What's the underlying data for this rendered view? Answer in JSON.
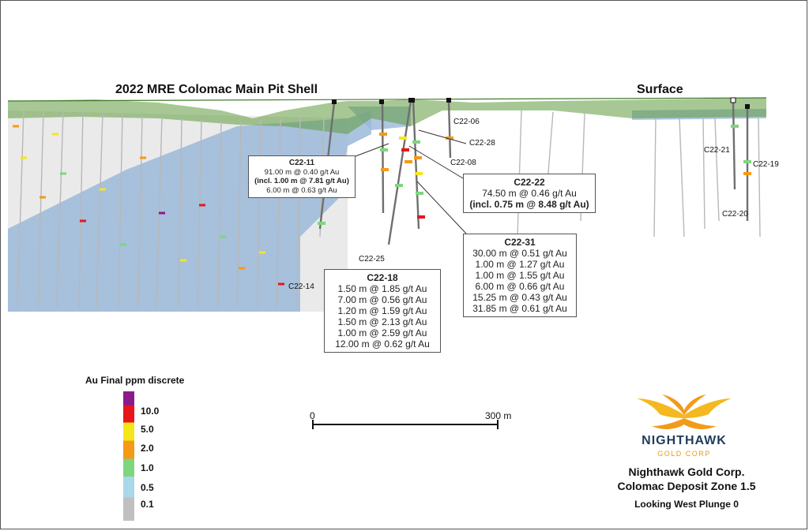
{
  "titles": {
    "pit_shell": "2022 MRE Colomac Main Pit Shell",
    "surface": "Surface"
  },
  "holes": {
    "c22_06": "C22-06",
    "c22_28": "C22-28",
    "c22_08": "C22-08",
    "c22_21": "C22-21",
    "c22_19": "C22-19",
    "c22_20": "C22-20",
    "c22_25": "C22-25",
    "c22_14": "C22-14"
  },
  "intercepts": {
    "c22_11": {
      "name": "C22-11",
      "lines": [
        "91.00 m @ 0.40 g/t Au",
        "(incl. 1.00 m @ 7.81 g/t Au)",
        "6.00 m @ 0.63 g/t Au"
      ]
    },
    "c22_22": {
      "name": "C22-22",
      "lines": [
        "74.50 m @ 0.46 g/t Au",
        "(incl. 0.75 m @ 8.48 g/t Au)"
      ]
    },
    "c22_31": {
      "name": "C22-31",
      "lines": [
        "30.00 m @ 0.51 g/t Au",
        "1.00 m @ 1.27 g/t Au",
        "1.00 m @ 1.55 g/t Au",
        "6.00 m @ 0.66 g/t Au",
        "15.25 m @ 0.43 g/t Au",
        "31.85 m @ 0.61 g/t Au"
      ]
    },
    "c22_18": {
      "name": "C22-18",
      "lines": [
        "1.50 m @ 1.85 g/t Au",
        "7.00 m @ 0.56 g/t Au",
        "1.20 m @ 1.59 g/t Au",
        "1.50 m @ 2.13 g/t Au",
        "1.00 m @ 2.59 g/t Au",
        "12.00 m @ 0.62 g/t Au"
      ]
    }
  },
  "legend": {
    "title": "Au Final ppm discrete",
    "labels": [
      "10.0",
      "5.0",
      "2.0",
      "1.0",
      "0.5",
      "0.1"
    ],
    "colors": [
      "#8b1a8b",
      "#e8151b",
      "#f5e61a",
      "#f59a14",
      "#7ed67e",
      "#a8d8ea",
      "#c0c0c0"
    ]
  },
  "scale": {
    "start": "0",
    "end": "300 m"
  },
  "logo": {
    "name": "NIGHTHAWK",
    "sub": "GOLD CORP"
  },
  "company": {
    "name": "Nighthawk Gold Corp.",
    "project": "Colomac Deposit Zone 1.5",
    "view": "Looking West  Plunge 0"
  },
  "colors": {
    "pit_shell": "#5e9a3c",
    "block_model": "#9bb8d8",
    "drill_trace": "#7a7a7a"
  }
}
